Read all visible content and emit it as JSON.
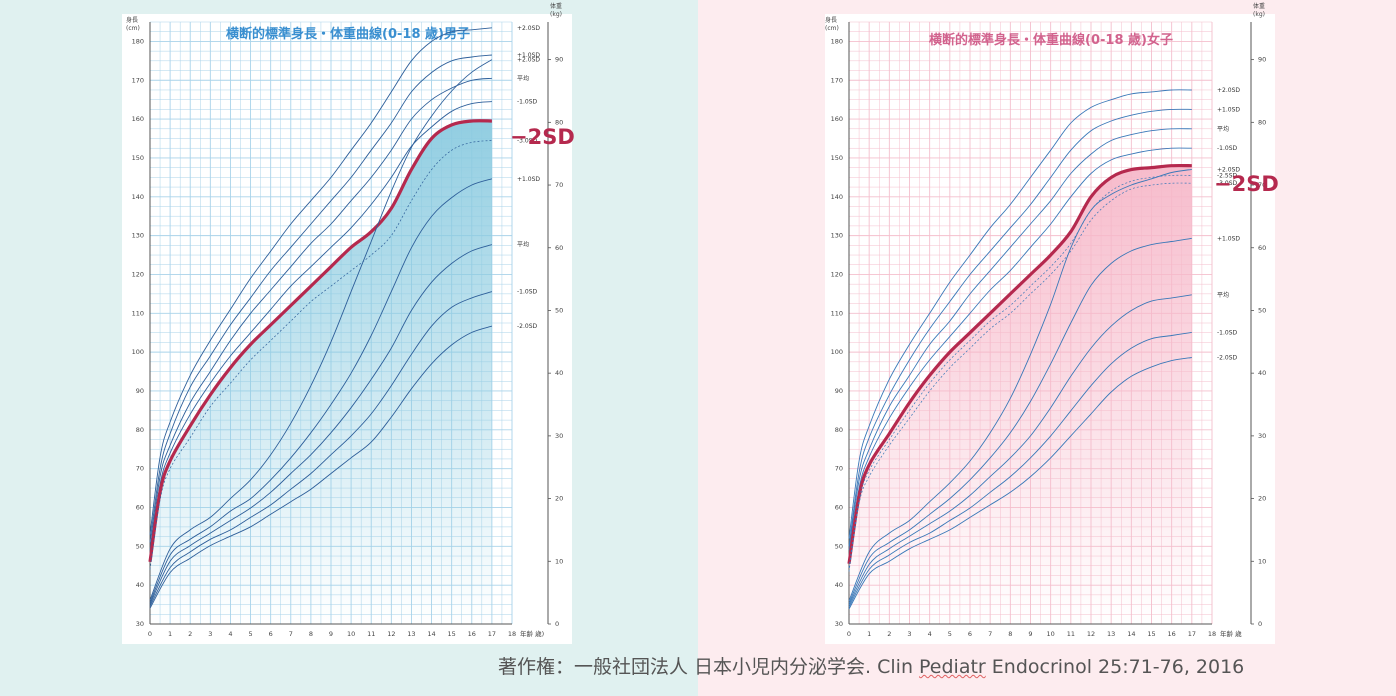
{
  "backgrounds": {
    "left": "#e0f1f0",
    "right": "#fdecef"
  },
  "credit": {
    "prefix": "著作権：一般社団法人 日本小児内分泌学会. Clin ",
    "underlined": "Pediatr",
    "suffix": " Endocrinol 25:71-76, 2016"
  },
  "chart_data": [
    {
      "id": "boys",
      "type": "line",
      "title": "横断的標準身長・体重曲線(0-18 歳)男子",
      "title_color": "#3a8fd0",
      "grid_color": "#a9d3ea",
      "line_color": "#2e5f9a",
      "highlight_color": "#b5294e",
      "fill_color": "#8ccbe0",
      "height_unit_label": [
        "身長",
        "(cm)"
      ],
      "weight_unit_label": [
        "体重",
        "(kg)"
      ],
      "x_unit_label": "年齢 歳)",
      "x_ticks": [
        0,
        1,
        2,
        3,
        4,
        5,
        6,
        7,
        8,
        9,
        10,
        11,
        12,
        13,
        14,
        15,
        16,
        17,
        18
      ],
      "height_axis": {
        "min": 30,
        "max": 185,
        "ticks": [
          30,
          40,
          50,
          60,
          70,
          80,
          90,
          100,
          110,
          120,
          130,
          140,
          150,
          160,
          170,
          180
        ]
      },
      "weight_axis": {
        "min": 0,
        "max": 96,
        "ticks": [
          0,
          10,
          20,
          30,
          40,
          50,
          60,
          70,
          80,
          90
        ]
      },
      "highlight_label": "−2SD",
      "fill_between": [
        "-2.0SD",
        "-3.0SD"
      ],
      "height_series": [
        {
          "name": "+2.0SD",
          "x": [
            0,
            0.5,
            1,
            2,
            3,
            4,
            5,
            6,
            7,
            8,
            9,
            10,
            11,
            12,
            13,
            14,
            15,
            16,
            17
          ],
          "y": [
            53,
            73,
            82,
            94,
            103,
            111,
            119,
            126,
            133,
            139,
            145,
            152,
            159,
            167,
            175,
            180,
            182.5,
            183,
            183.5
          ]
        },
        {
          "name": "+1.0SD",
          "x": [
            0,
            0.5,
            1,
            2,
            3,
            4,
            5,
            6,
            7,
            8,
            9,
            10,
            11,
            12,
            13,
            14,
            15,
            16,
            17
          ],
          "y": [
            51,
            70,
            79,
            91,
            99,
            107,
            114,
            121,
            127,
            133,
            139,
            145,
            152,
            159,
            167,
            172,
            175,
            176,
            176.5
          ]
        },
        {
          "name": "平均",
          "x": [
            0,
            0.5,
            1,
            2,
            3,
            4,
            5,
            6,
            7,
            8,
            9,
            10,
            11,
            12,
            13,
            14,
            15,
            16,
            17
          ],
          "y": [
            49,
            68,
            76,
            87,
            95,
            103,
            110,
            116,
            122,
            128,
            133,
            139,
            145,
            152,
            160,
            165,
            168,
            170,
            170.5
          ]
        },
        {
          "name": "-1.0SD",
          "x": [
            0,
            0.5,
            1,
            2,
            3,
            4,
            5,
            6,
            7,
            8,
            9,
            10,
            11,
            12,
            13,
            14,
            15,
            16,
            17
          ],
          "y": [
            47.5,
            66,
            74,
            84,
            92,
            99,
            105,
            111,
            117,
            122,
            127,
            132,
            138,
            145,
            153,
            158,
            162,
            164,
            164.5
          ]
        },
        {
          "name": "-2.0SD",
          "x": [
            0,
            0.5,
            1,
            2,
            3,
            4,
            5,
            6,
            7,
            8,
            9,
            10,
            11,
            12,
            13,
            14,
            15,
            16,
            17
          ],
          "y": [
            46,
            64,
            72,
            81,
            89,
            96,
            102,
            107,
            112,
            117,
            122,
            127,
            131,
            137,
            147,
            155,
            158.5,
            159.5,
            159.5
          ],
          "highlight": true
        },
        {
          "name": "-3.0SD",
          "x": [
            0,
            0.5,
            1,
            2,
            3,
            4,
            5,
            6,
            7,
            8,
            9,
            10,
            11,
            12,
            13,
            14,
            15,
            16,
            17
          ],
          "y": [
            44,
            62,
            70,
            78,
            86,
            92,
            98,
            103,
            108,
            113,
            117,
            121,
            125,
            130,
            139,
            147,
            152,
            154,
            154.5
          ],
          "dashed": true
        }
      ],
      "weight_series": [
        {
          "name": "+2.0SD",
          "x": [
            0,
            1,
            2,
            3,
            4,
            5,
            6,
            7,
            8,
            9,
            10,
            11,
            12,
            13,
            14,
            15,
            16,
            17
          ],
          "y": [
            3.8,
            12,
            15,
            17,
            20,
            23,
            27,
            32,
            38,
            45,
            53,
            61,
            69,
            76,
            81,
            85,
            88,
            90
          ]
        },
        {
          "name": "+1.0SD",
          "x": [
            0,
            1,
            2,
            3,
            4,
            5,
            6,
            7,
            8,
            9,
            10,
            11,
            12,
            13,
            14,
            15,
            16,
            17
          ],
          "y": [
            3.4,
            11,
            13.5,
            15.5,
            18,
            20,
            23,
            26.5,
            30.5,
            35,
            40,
            46,
            53,
            60,
            65,
            68,
            70,
            71
          ]
        },
        {
          "name": "平均",
          "x": [
            0,
            1,
            2,
            3,
            4,
            5,
            6,
            7,
            8,
            9,
            10,
            11,
            12,
            13,
            14,
            15,
            16,
            17
          ],
          "y": [
            3.1,
            10,
            12.5,
            14.5,
            16.5,
            18.5,
            21,
            24,
            27,
            30.5,
            34.5,
            39,
            44,
            50,
            54.5,
            57.5,
            59.5,
            60.5
          ]
        },
        {
          "name": "-1.0SD",
          "x": [
            0,
            1,
            2,
            3,
            4,
            5,
            6,
            7,
            8,
            9,
            10,
            11,
            12,
            13,
            14,
            15,
            16,
            17
          ],
          "y": [
            2.8,
            9,
            11.5,
            13.5,
            15,
            17,
            19,
            21.5,
            24,
            27,
            30,
            33.5,
            38,
            43,
            47.5,
            50.5,
            52,
            53
          ]
        },
        {
          "name": "-2.0SD",
          "x": [
            0,
            1,
            2,
            3,
            4,
            5,
            6,
            7,
            8,
            9,
            10,
            11,
            12,
            13,
            14,
            15,
            16,
            17
          ],
          "y": [
            2.5,
            8.2,
            10.5,
            12.5,
            14,
            15.5,
            17.5,
            19.5,
            21.5,
            24,
            26.5,
            29,
            33,
            37.5,
            41.5,
            44.5,
            46.5,
            47.5
          ]
        }
      ]
    },
    {
      "id": "girls",
      "type": "line",
      "title": "横断的標準身長・体重曲線(0-18 歳)女子",
      "title_color": "#d2638e",
      "grid_color": "#f4bfcd",
      "line_color": "#3a78b8",
      "highlight_color": "#b5294e",
      "fill_color": "#f6b8c9",
      "height_unit_label": [
        "身長",
        "(cm)"
      ],
      "weight_unit_label": [
        "体重",
        "(kg)"
      ],
      "x_unit_label": "年齢 歳",
      "x_ticks": [
        0,
        1,
        2,
        3,
        4,
        5,
        6,
        7,
        8,
        9,
        10,
        11,
        12,
        13,
        14,
        15,
        16,
        17,
        18
      ],
      "height_axis": {
        "min": 30,
        "max": 185,
        "ticks": [
          30,
          40,
          50,
          60,
          70,
          80,
          90,
          100,
          110,
          120,
          130,
          140,
          150,
          160,
          170,
          180
        ]
      },
      "weight_axis": {
        "min": 0,
        "max": 96,
        "ticks": [
          0,
          10,
          20,
          30,
          40,
          50,
          60,
          70,
          80,
          90
        ]
      },
      "highlight_label": "−2SD",
      "fill_between": [
        "-2.0SD",
        "-3.0SD"
      ],
      "height_series": [
        {
          "name": "+2.0SD",
          "x": [
            0,
            0.5,
            1,
            2,
            3,
            4,
            5,
            6,
            7,
            8,
            9,
            10,
            11,
            12,
            13,
            14,
            15,
            16,
            17
          ],
          "y": [
            52,
            72,
            81,
            93,
            102,
            110,
            118,
            125,
            132,
            138,
            145,
            152,
            159,
            163,
            165,
            166.5,
            167,
            167.5,
            167.5
          ]
        },
        {
          "name": "+1.0SD",
          "x": [
            0,
            0.5,
            1,
            2,
            3,
            4,
            5,
            6,
            7,
            8,
            9,
            10,
            11,
            12,
            13,
            14,
            15,
            16,
            17
          ],
          "y": [
            50,
            69,
            78,
            89,
            98,
            106,
            113,
            120,
            126,
            132,
            138,
            145,
            152,
            157,
            159.5,
            161,
            162,
            162.5,
            162.5
          ]
        },
        {
          "name": "平均",
          "x": [
            0,
            0.5,
            1,
            2,
            3,
            4,
            5,
            6,
            7,
            8,
            9,
            10,
            11,
            12,
            13,
            14,
            15,
            16,
            17
          ],
          "y": [
            49,
            67,
            75,
            86,
            94,
            102,
            108,
            115,
            121,
            127,
            133,
            139,
            146,
            151,
            154.5,
            156,
            157,
            157.5,
            157.5
          ]
        },
        {
          "name": "-1.0SD",
          "x": [
            0,
            0.5,
            1,
            2,
            3,
            4,
            5,
            6,
            7,
            8,
            9,
            10,
            11,
            12,
            13,
            14,
            15,
            16,
            17
          ],
          "y": [
            47.5,
            65,
            73,
            83,
            91,
            98,
            104,
            110,
            116,
            121,
            127,
            133,
            140,
            146,
            149.5,
            151,
            152,
            152.5,
            152.5
          ]
        },
        {
          "name": "-2.0SD",
          "x": [
            0,
            0.5,
            1,
            2,
            3,
            4,
            5,
            6,
            7,
            8,
            9,
            10,
            11,
            12,
            13,
            14,
            15,
            16,
            17
          ],
          "y": [
            45.5,
            63,
            71,
            79,
            87,
            94,
            100,
            105,
            110,
            115,
            120,
            125,
            131,
            140,
            145,
            147,
            147.5,
            148,
            148
          ],
          "highlight": true
        },
        {
          "name": "-2.5SD",
          "x": [
            0,
            0.5,
            1,
            2,
            3,
            4,
            5,
            6,
            7,
            8,
            9,
            10,
            11,
            12,
            13,
            14,
            15,
            16,
            17
          ],
          "y": [
            44.5,
            62,
            69.5,
            77.5,
            85,
            92,
            98,
            103,
            108,
            112,
            117,
            122,
            128,
            136.5,
            141.5,
            144,
            145,
            145.5,
            145.5
          ],
          "dashed": true
        },
        {
          "name": "-3.0SD",
          "x": [
            0,
            0.5,
            1,
            2,
            3,
            4,
            5,
            6,
            7,
            8,
            9,
            10,
            11,
            12,
            13,
            14,
            15,
            16,
            17
          ],
          "y": [
            43.5,
            61,
            68,
            76,
            83,
            90,
            96,
            101,
            106,
            110,
            115,
            120,
            126,
            134,
            139,
            142,
            143,
            143.5,
            143.5
          ],
          "dashed": true
        }
      ],
      "weight_series": [
        {
          "name": "+2.0SD",
          "x": [
            0,
            1,
            2,
            3,
            4,
            5,
            6,
            7,
            8,
            9,
            10,
            11,
            12,
            13,
            14,
            15,
            16,
            17
          ],
          "y": [
            3.7,
            11.5,
            14.5,
            16.5,
            19.5,
            22.5,
            26,
            30.5,
            36,
            43,
            51,
            60,
            66,
            68.5,
            70,
            71,
            72,
            72.5
          ]
        },
        {
          "name": "+1.0SD",
          "x": [
            0,
            1,
            2,
            3,
            4,
            5,
            6,
            7,
            8,
            9,
            10,
            11,
            12,
            13,
            14,
            15,
            16,
            17
          ],
          "y": [
            3.3,
            10.5,
            13,
            15,
            17.5,
            20,
            23,
            26.5,
            30.5,
            35.5,
            41.5,
            48,
            54,
            57.5,
            59.5,
            60.5,
            61,
            61.5
          ]
        },
        {
          "name": "平均",
          "x": [
            0,
            1,
            2,
            3,
            4,
            5,
            6,
            7,
            8,
            9,
            10,
            11,
            12,
            13,
            14,
            15,
            16,
            17
          ],
          "y": [
            3.0,
            9.5,
            12,
            14,
            16,
            18,
            20.5,
            23.5,
            26.5,
            30,
            34.5,
            39.5,
            44,
            47.5,
            50,
            51.5,
            52,
            52.5
          ]
        },
        {
          "name": "-1.0SD",
          "x": [
            0,
            1,
            2,
            3,
            4,
            5,
            6,
            7,
            8,
            9,
            10,
            11,
            12,
            13,
            14,
            15,
            16,
            17
          ],
          "y": [
            2.7,
            8.7,
            11,
            13,
            14.5,
            16.5,
            18.5,
            21,
            23.5,
            26.5,
            30,
            34,
            38,
            41.5,
            44,
            45.5,
            46,
            46.5
          ]
        },
        {
          "name": "-2.0SD",
          "x": [
            0,
            1,
            2,
            3,
            4,
            5,
            6,
            7,
            8,
            9,
            10,
            11,
            12,
            13,
            14,
            15,
            16,
            17
          ],
          "y": [
            2.4,
            8,
            10,
            12,
            13.5,
            15,
            17,
            19,
            21,
            23.5,
            26.5,
            30,
            33.5,
            37,
            39.5,
            41,
            42,
            42.5
          ]
        }
      ]
    }
  ]
}
